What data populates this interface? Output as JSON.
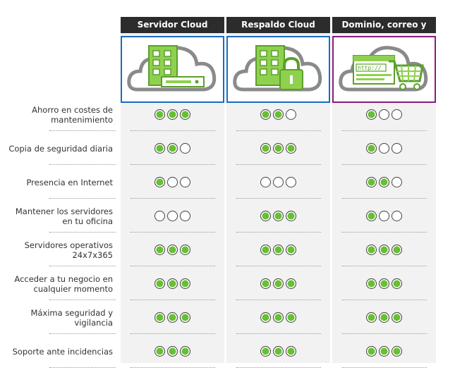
{
  "columns": [
    {
      "title": "Servidor Cloud",
      "border": "#1a6bbf",
      "icon": "server-cloud-icon"
    },
    {
      "title": "Respaldo Cloud",
      "border": "#1a6bbf",
      "icon": "backup-cloud-icon"
    },
    {
      "title": "Dominio, correo y web",
      "border": "#8a1a7a",
      "icon": "web-cart-cloud-icon",
      "icon_text": "http://"
    }
  ],
  "rows": [
    {
      "label": "Ahorro en costes de mantenimiento",
      "ratings": [
        3,
        2,
        1
      ]
    },
    {
      "label": "Copia de seguridad diaria",
      "ratings": [
        2,
        3,
        1
      ]
    },
    {
      "label": "Presencia en Internet",
      "ratings": [
        1,
        0,
        2
      ]
    },
    {
      "label": "Mantener los servidores en tu oficina",
      "ratings": [
        0,
        3,
        1
      ]
    },
    {
      "label": "Servidores operativos 24x7x365",
      "ratings": [
        3,
        3,
        3
      ]
    },
    {
      "label": "Acceder a tu negocio en cualquier momento",
      "ratings": [
        3,
        3,
        3
      ]
    },
    {
      "label": "Máxima seguridad y vigilancia",
      "ratings": [
        3,
        3,
        3
      ]
    },
    {
      "label": "Soporte ante incidencias",
      "ratings": [
        3,
        3,
        3
      ]
    }
  ],
  "max_rating": 3,
  "colors": {
    "dot_on": "#67c032",
    "header_bg": "#2c2c2c",
    "column_bg": "#f2f2f2"
  }
}
